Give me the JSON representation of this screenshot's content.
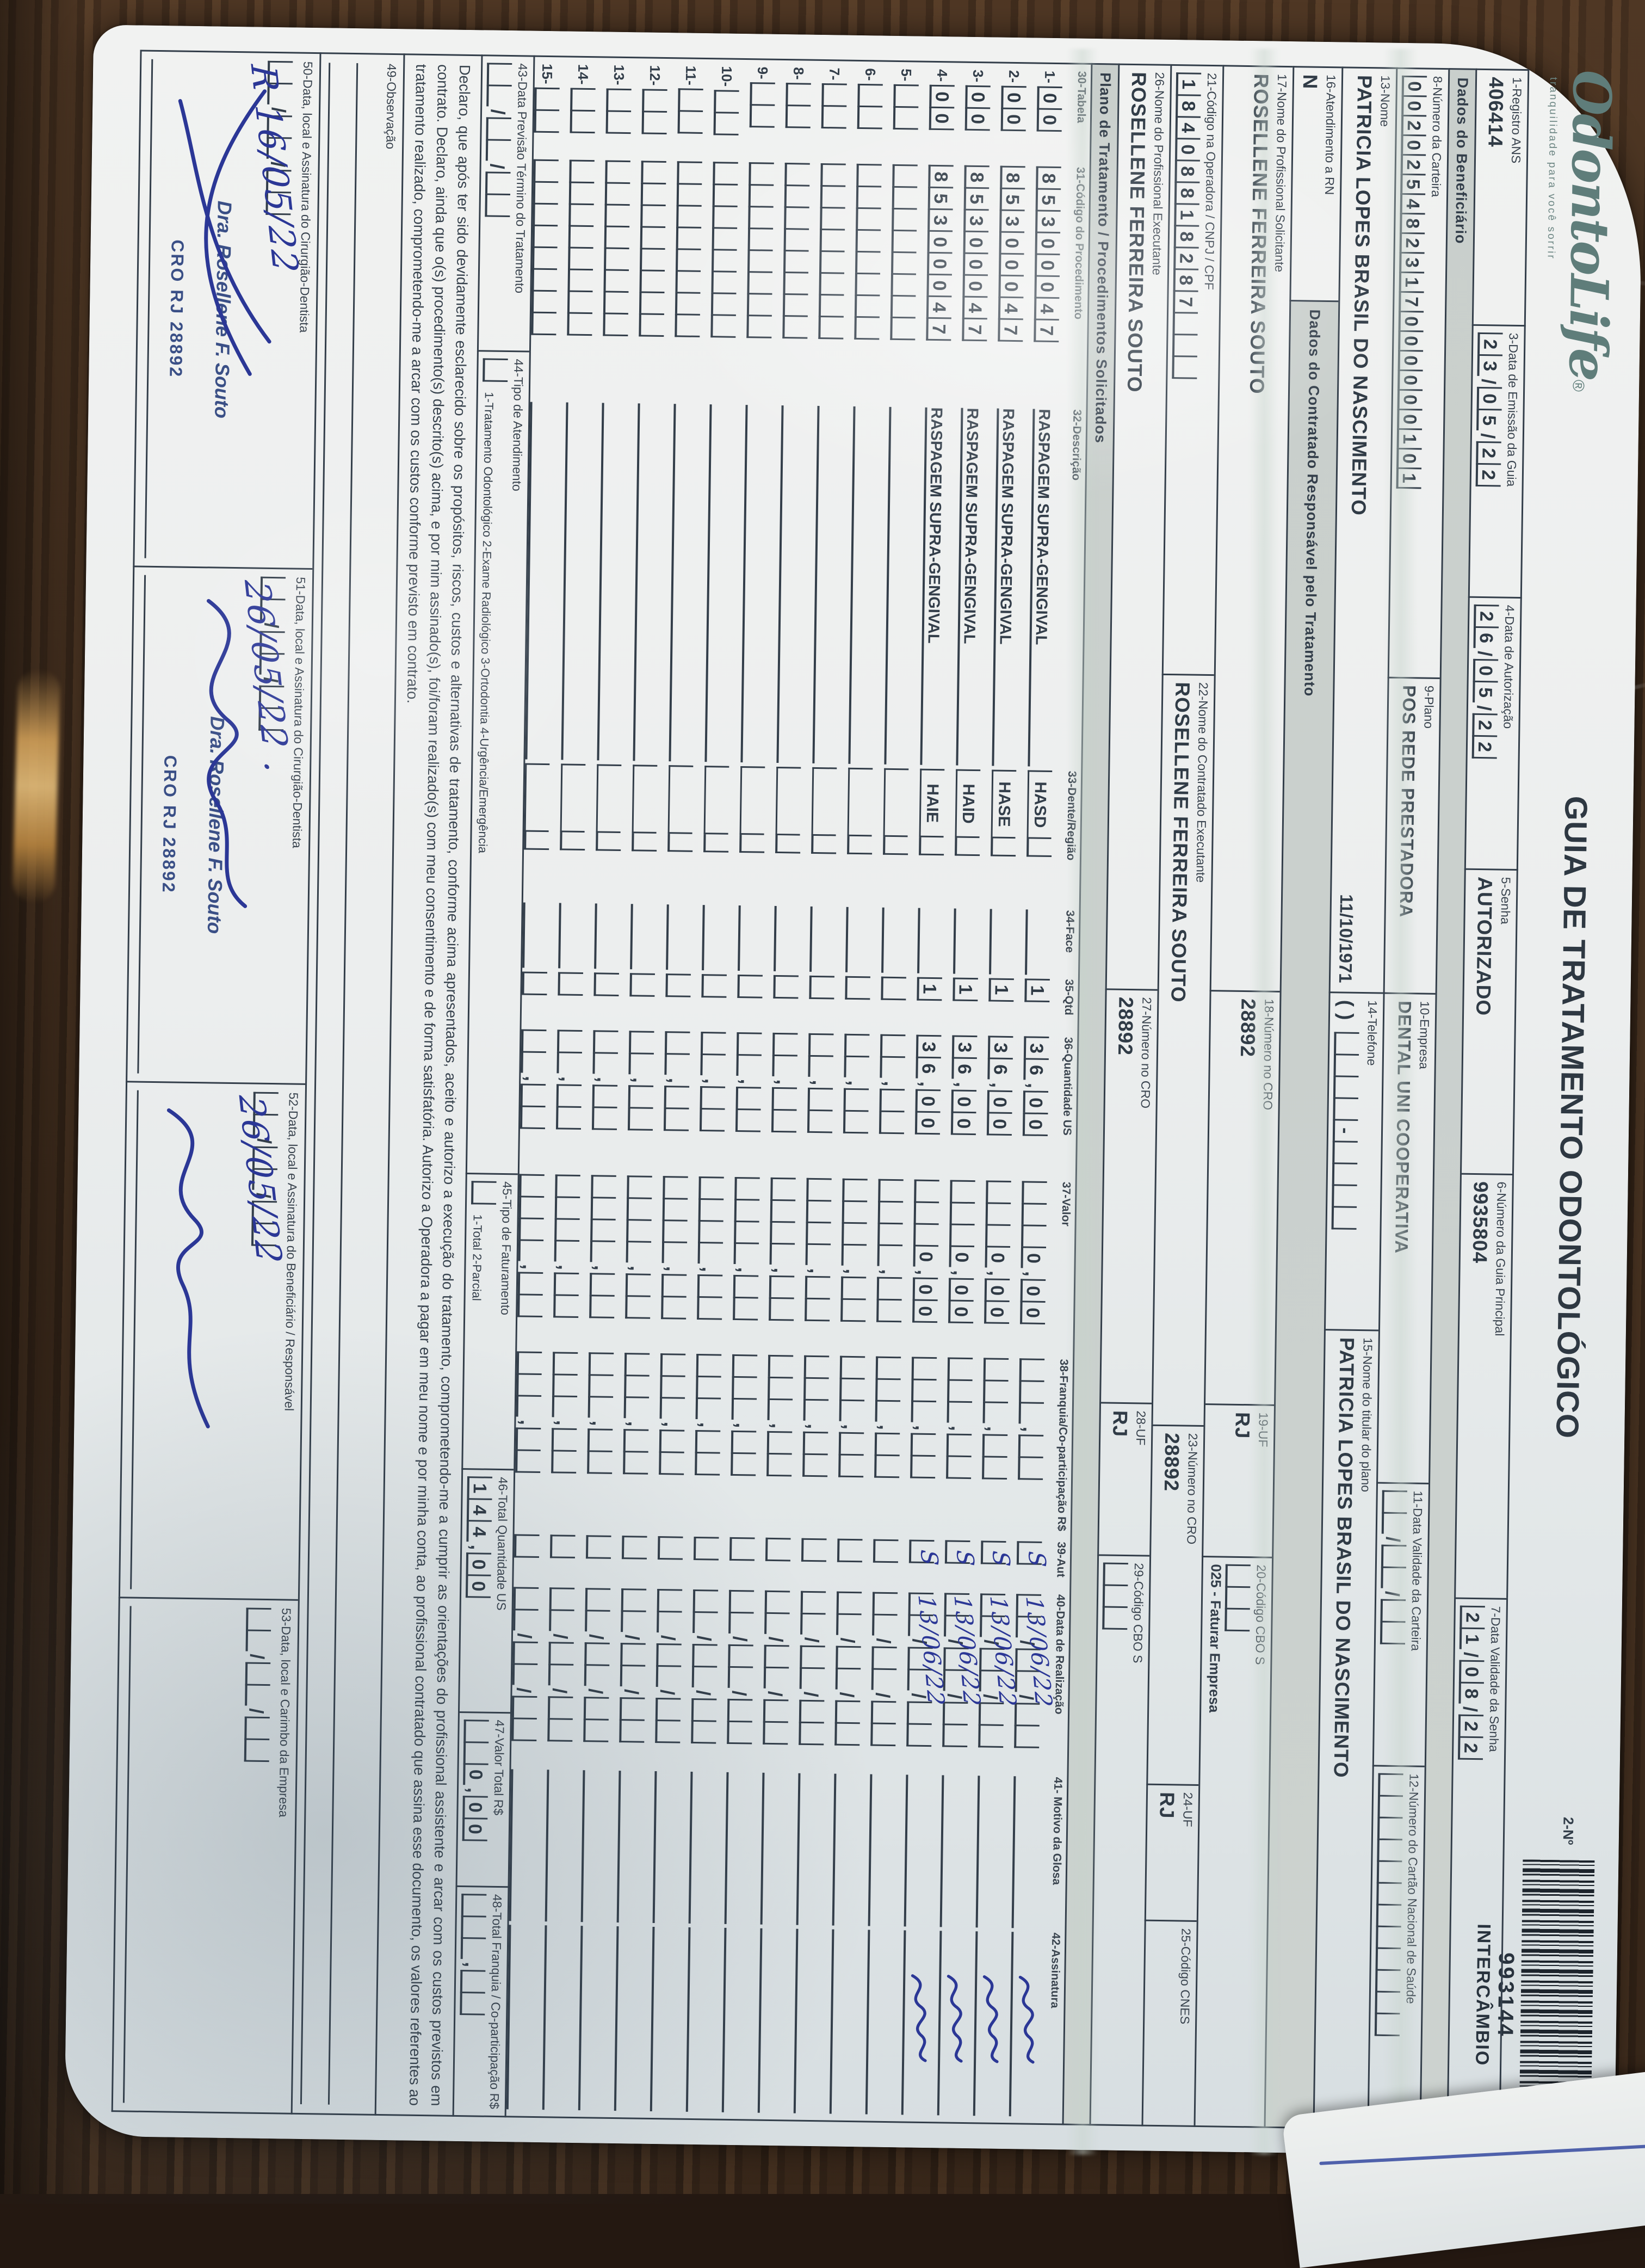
{
  "header": {
    "logo_text": "OdontoLife",
    "logo_reg": "®",
    "logo_tagline": "tranquilidade para você sorrir",
    "title": "GUIA DE TRATAMENTO ODONTOLÓGICO",
    "number_label": "2-Nº",
    "barcode_number": "993144",
    "barcode_caption": "INTERCÂMBIO"
  },
  "sections": {
    "beneficiario": "Dados do Beneficiário",
    "contratado": "Dados do Contratado Responsável pelo Tratamento",
    "plano": "Plano de Tratamento / Procedimentos Solicitados"
  },
  "fields": {
    "f1": {
      "label": "1-Registro ANS",
      "value": "406414"
    },
    "f3": {
      "label": "3-Data de Emissão da Guia",
      "value": "23/05/22"
    },
    "f4": {
      "label": "4-Data de Autorização",
      "value": "26/05/22"
    },
    "f5": {
      "label": "5-Senha",
      "value": "AUTORIZADO"
    },
    "f6": {
      "label": "6-Número da Guia Principal",
      "value": "9935804"
    },
    "f7": {
      "label": "7-Data Validade da Senha",
      "value": "21/08/22"
    },
    "f8": {
      "label": "8-Número da Carteira",
      "value": "002025482317000000101"
    },
    "f9": {
      "label": "9-Plano",
      "value": "POS REDE PRESTADORA"
    },
    "f10": {
      "label": "10-Empresa",
      "value": "DENTAL UNI COOPERATIVA"
    },
    "f11": {
      "label": "11-Data Validade da Carteira",
      "value": ""
    },
    "f12": {
      "label": "12-Número do Cartão Nacional de Saúde",
      "value": ""
    },
    "f13": {
      "label": "13-Nome",
      "value": "PATRICIA LOPES BRASIL DO NASCIMENTO",
      "extra": "11/10/1971"
    },
    "f14": {
      "label": "14-Telefone",
      "value": "",
      "prefix": "(    )"
    },
    "f15": {
      "label": "15-Nome do titular do plano",
      "value": "PATRICIA LOPES BRASIL DO NASCIMENTO"
    },
    "f16": {
      "label": "16-Atendimento a RN",
      "value": "N"
    },
    "f17": {
      "label": "17-Nome do Profissional Solicitante",
      "value": "ROSELLENE FERREIRA SOUTO"
    },
    "f18": {
      "label": "18-Número no CRO",
      "value": "28892"
    },
    "f19": {
      "label": "19-UF",
      "value": "RJ"
    },
    "f20": {
      "label": "20-Código CBO S",
      "value": "",
      "note": "025 - Faturar Empresa"
    },
    "f21": {
      "label": "21-Código na Operadora / CNPJ / CPF",
      "value": "18408818287"
    },
    "f22": {
      "label": "22-Nome do Contratado Executante",
      "value": "ROSELLENE FERREIRA SOUTO"
    },
    "f23": {
      "label": "23-Número no CRO",
      "value": "28892"
    },
    "f24": {
      "label": "24-UF",
      "value": "RJ"
    },
    "f25": {
      "label": "25-Código CNES",
      "value": ""
    },
    "f26": {
      "label": "26-Nome do Profissional Executante",
      "value": "ROSELLENE FERREIRA SOUTO"
    },
    "f27": {
      "label": "27-Número no CRO",
      "value": "28892"
    },
    "f28": {
      "label": "28-UF",
      "value": "RJ"
    },
    "f29": {
      "label": "29-Código CBO S",
      "value": ""
    }
  },
  "table": {
    "headers": [
      "30-Tabela",
      "31-Código do Procedimento",
      "32-Descrição",
      "33-Dente/Região",
      "34-Face",
      "35-Qtd",
      "36-Quantidade US",
      "37-Valor",
      "38-Franquia/Co-participação R$",
      "39-Aut",
      "40-Data de Realização",
      "41- Motivo da Glosa",
      "42-Assinatura"
    ],
    "rows": [
      {
        "num": "1-",
        "tabela": "00",
        "codigo": "85300047",
        "desc": "RASPAGEM SUPRA-GENGIVAL",
        "dente": "HASD",
        "face": "",
        "qtd": "1",
        "us": "36,00",
        "valor": "0,00",
        "franquia": "",
        "aut": "S",
        "data": "13/06/22",
        "glosa": "",
        "filled": true
      },
      {
        "num": "2-",
        "tabela": "00",
        "codigo": "85300047",
        "desc": "RASPAGEM SUPRA-GENGIVAL",
        "dente": "HASE",
        "face": "",
        "qtd": "1",
        "us": "36,00",
        "valor": "0,00",
        "franquia": "",
        "aut": "S",
        "data": "13/06/22",
        "glosa": "",
        "filled": true
      },
      {
        "num": "3-",
        "tabela": "00",
        "codigo": "85300047",
        "desc": "RASPAGEM SUPRA-GENGIVAL",
        "dente": "HAID",
        "face": "",
        "qtd": "1",
        "us": "36,00",
        "valor": "0,00",
        "franquia": "",
        "aut": "S",
        "data": "13/06/22",
        "glosa": "",
        "filled": true
      },
      {
        "num": "4-",
        "tabela": "00",
        "codigo": "85300047",
        "desc": "RASPAGEM SUPRA-GENGIVAL",
        "dente": "HAIE",
        "face": "",
        "qtd": "1",
        "us": "36,00",
        "valor": "0,00",
        "franquia": "",
        "aut": "S",
        "data": "13/06/22",
        "glosa": "",
        "filled": true
      },
      {
        "num": "5-",
        "tabela": "",
        "codigo": "",
        "desc": "",
        "dente": "",
        "face": "",
        "qtd": "",
        "us": "",
        "valor": "",
        "franquia": "",
        "aut": "",
        "data": "",
        "glosa": "",
        "filled": false
      },
      {
        "num": "6-",
        "tabela": "",
        "codigo": "",
        "desc": "",
        "dente": "",
        "face": "",
        "qtd": "",
        "us": "",
        "valor": "",
        "franquia": "",
        "aut": "",
        "data": "",
        "glosa": "",
        "filled": false
      },
      {
        "num": "7-",
        "tabela": "",
        "codigo": "",
        "desc": "",
        "dente": "",
        "face": "",
        "qtd": "",
        "us": "",
        "valor": "",
        "franquia": "",
        "aut": "",
        "data": "",
        "glosa": "",
        "filled": false
      },
      {
        "num": "8-",
        "tabela": "",
        "codigo": "",
        "desc": "",
        "dente": "",
        "face": "",
        "qtd": "",
        "us": "",
        "valor": "",
        "franquia": "",
        "aut": "",
        "data": "",
        "glosa": "",
        "filled": false
      },
      {
        "num": "9-",
        "tabela": "",
        "codigo": "",
        "desc": "",
        "dente": "",
        "face": "",
        "qtd": "",
        "us": "",
        "valor": "",
        "franquia": "",
        "aut": "",
        "data": "",
        "glosa": "",
        "filled": false
      },
      {
        "num": "10-",
        "tabela": "",
        "codigo": "",
        "desc": "",
        "dente": "",
        "face": "",
        "qtd": "",
        "us": "",
        "valor": "",
        "franquia": "",
        "aut": "",
        "data": "",
        "glosa": "",
        "filled": false
      },
      {
        "num": "11-",
        "tabela": "",
        "codigo": "",
        "desc": "",
        "dente": "",
        "face": "",
        "qtd": "",
        "us": "",
        "valor": "",
        "franquia": "",
        "aut": "",
        "data": "",
        "glosa": "",
        "filled": false
      },
      {
        "num": "12-",
        "tabela": "",
        "codigo": "",
        "desc": "",
        "dente": "",
        "face": "",
        "qtd": "",
        "us": "",
        "valor": "",
        "franquia": "",
        "aut": "",
        "data": "",
        "glosa": "",
        "filled": false
      },
      {
        "num": "13-",
        "tabela": "",
        "codigo": "",
        "desc": "",
        "dente": "",
        "face": "",
        "qtd": "",
        "us": "",
        "valor": "",
        "franquia": "",
        "aut": "",
        "data": "",
        "glosa": "",
        "filled": false
      },
      {
        "num": "14-",
        "tabela": "",
        "codigo": "",
        "desc": "",
        "dente": "",
        "face": "",
        "qtd": "",
        "us": "",
        "valor": "",
        "franquia": "",
        "aut": "",
        "data": "",
        "glosa": "",
        "filled": false
      },
      {
        "num": "15-",
        "tabela": "",
        "codigo": "",
        "desc": "",
        "dente": "",
        "face": "",
        "qtd": "",
        "us": "",
        "valor": "",
        "franquia": "",
        "aut": "",
        "data": "",
        "glosa": "",
        "filled": false
      }
    ]
  },
  "totals": {
    "f43": {
      "label": "43-Data Previsão Término do Tratamento",
      "value": ""
    },
    "f44": {
      "label": "44-Tipo de Atendimento",
      "options": "1-Tratamento Odontológico   2-Exame Radiológico   3-Ortodontia   4-Urgência/Emergência",
      "value": ""
    },
    "f45": {
      "label": "45-Tipo de Faturamento",
      "options": "1-Total   2-Parcial",
      "value": ""
    },
    "f46": {
      "label": "46-Total Quantidade US",
      "value": "144,00"
    },
    "f47": {
      "label": "47-Valor Total R$",
      "value": "0,00"
    },
    "f48": {
      "label": "48-Total Franquia / Co-participação R$",
      "value": ""
    }
  },
  "declaration": "Declaro, que após ter sido devidamente esclarecido sobre os propósitos, riscos, custos e alternativas de tratamento, conforme acima apresentados, aceito e autorizo a execução do tratamento, comprometendo-me a cumprir as orientações do profissional assistente e arcar com os custos previstos em contrato. Declaro, ainda que o(s) procedimento(s) descrito(s) acima, e por mim assinado(s), foi/foram realizado(s) com meu consentimento e de forma satisfatória. Autorizo a Operadora a pagar em meu nome e por minha conta, ao profissional contratado que assina esse documento, os valores referentes ao tratamento realizado, comprometendo-me a arcar com os custos conforme previsto em contrato.",
  "observacao": {
    "label": "49-Observação"
  },
  "bottom": [
    {
      "label": "50-Data, local e Assinatura do Cirurgião-Dentista",
      "date": "R 16/05/22",
      "stamp_name": "Dra. Rosellene F. Souto",
      "stamp_cro": "CRO RJ 28892",
      "signed": true
    },
    {
      "label": "51-Data, local e Assinatura do Cirurgião-Dentista",
      "date": "26/05/22 .",
      "stamp_name": "Dra. Rosellene F. Souto",
      "stamp_cro": "CRO RJ 28892",
      "signed": true
    },
    {
      "label": "52-Data, local e Assinatura do Beneficiário / Responsável",
      "date": "26/05/22",
      "stamp_name": "",
      "stamp_cro": "",
      "signed": true
    },
    {
      "label": "53-Data, local e Carimbo da Empresa",
      "date": "",
      "stamp_name": "",
      "stamp_cro": "",
      "signed": false
    }
  ]
}
